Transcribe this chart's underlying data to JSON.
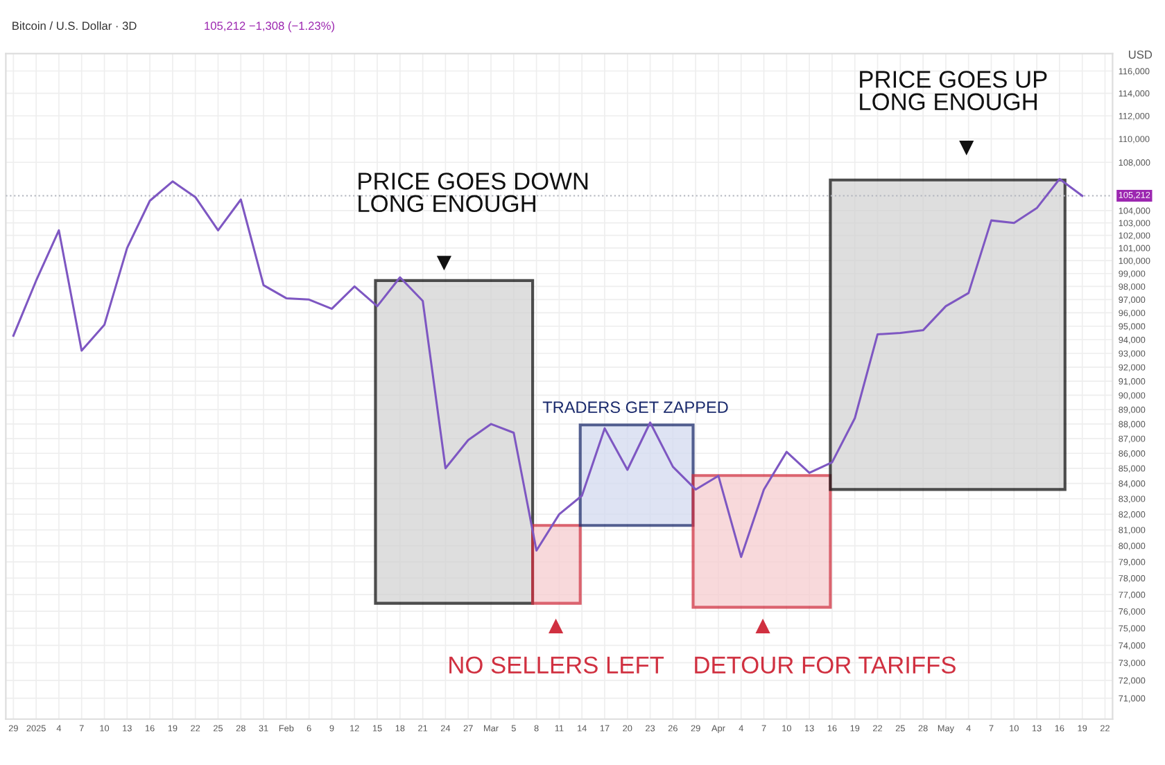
{
  "chart_data": {
    "type": "line",
    "title": "Bitcoin / U.S. Dollar · 3D",
    "subtitle": "105,212 −1,308 (−1.23%)",
    "ylabel": "USD",
    "x": [
      "2024-12-29",
      "2025-01-01",
      "2025-01-04",
      "2025-01-07",
      "2025-01-10",
      "2025-01-13",
      "2025-01-16",
      "2025-01-19",
      "2025-01-22",
      "2025-01-25",
      "2025-01-28",
      "2025-01-31",
      "2025-02-03",
      "2025-02-06",
      "2025-02-09",
      "2025-02-12",
      "2025-02-15",
      "2025-02-18",
      "2025-02-21",
      "2025-02-24",
      "2025-02-27",
      "2025-03-02",
      "2025-03-05",
      "2025-03-08",
      "2025-03-11",
      "2025-03-14",
      "2025-03-17",
      "2025-03-20",
      "2025-03-23",
      "2025-03-26",
      "2025-03-29",
      "2025-04-01",
      "2025-04-04",
      "2025-04-07",
      "2025-04-10",
      "2025-04-13",
      "2025-04-16",
      "2025-04-19",
      "2025-04-22",
      "2025-04-25",
      "2025-04-28",
      "2025-05-01",
      "2025-05-04",
      "2025-05-07",
      "2025-05-10",
      "2025-05-13",
      "2025-05-16",
      "2025-05-19"
    ],
    "series": [
      {
        "color": "#7e57c2",
        "values": [
          94300,
          98450,
          102400,
          93200,
          95100,
          101000,
          104800,
          106400,
          105100,
          102400,
          104900,
          98100,
          97100,
          97000,
          96300,
          98000,
          96500,
          98700,
          96900,
          85000,
          86900,
          88000,
          87400,
          79700,
          82000,
          83200,
          87700,
          84900,
          88100,
          85100,
          83600,
          84500,
          79300,
          83600,
          86100,
          84700,
          85400,
          88400,
          94400,
          94500,
          94700,
          96500,
          97500,
          103200,
          103000,
          104200,
          106600,
          105212
        ]
      }
    ],
    "log": true,
    "grid": true,
    "legend": false,
    "marker": "none",
    "line_style": "solid",
    "xlim": [
      "2024-12-28",
      "2025-05-23"
    ],
    "xticks": [
      {
        "value": "2024-12-29",
        "label": "29"
      },
      {
        "value": "2025-01-01",
        "label": "2025"
      },
      {
        "value": "2025-01-04",
        "label": "4"
      },
      {
        "value": "2025-01-07",
        "label": "7"
      },
      {
        "value": "2025-01-10",
        "label": "10"
      },
      {
        "value": "2025-01-13",
        "label": "13"
      },
      {
        "value": "2025-01-16",
        "label": "16"
      },
      {
        "value": "2025-01-19",
        "label": "19"
      },
      {
        "value": "2025-01-22",
        "label": "22"
      },
      {
        "value": "2025-01-25",
        "label": "25"
      },
      {
        "value": "2025-01-28",
        "label": "28"
      },
      {
        "value": "2025-01-31",
        "label": "31"
      },
      {
        "value": "2025-02-03",
        "label": "Feb"
      },
      {
        "value": "2025-02-06",
        "label": "6"
      },
      {
        "value": "2025-02-09",
        "label": "9"
      },
      {
        "value": "2025-02-12",
        "label": "12"
      },
      {
        "value": "2025-02-15",
        "label": "15"
      },
      {
        "value": "2025-02-18",
        "label": "18"
      },
      {
        "value": "2025-02-21",
        "label": "21"
      },
      {
        "value": "2025-02-24",
        "label": "24"
      },
      {
        "value": "2025-02-27",
        "label": "27"
      },
      {
        "value": "2025-03-02",
        "label": "Mar"
      },
      {
        "value": "2025-03-05",
        "label": "5"
      },
      {
        "value": "2025-03-08",
        "label": "8"
      },
      {
        "value": "2025-03-11",
        "label": "11"
      },
      {
        "value": "2025-03-14",
        "label": "14"
      },
      {
        "value": "2025-03-17",
        "label": "17"
      },
      {
        "value": "2025-03-20",
        "label": "20"
      },
      {
        "value": "2025-03-23",
        "label": "23"
      },
      {
        "value": "2025-03-26",
        "label": "26"
      },
      {
        "value": "2025-03-29",
        "label": "29"
      },
      {
        "value": "2025-04-01",
        "label": "Apr"
      },
      {
        "value": "2025-04-04",
        "label": "4"
      },
      {
        "value": "2025-04-07",
        "label": "7"
      },
      {
        "value": "2025-04-10",
        "label": "10"
      },
      {
        "value": "2025-04-13",
        "label": "13"
      },
      {
        "value": "2025-04-16",
        "label": "16"
      },
      {
        "value": "2025-04-19",
        "label": "19"
      },
      {
        "value": "2025-04-22",
        "label": "22"
      },
      {
        "value": "2025-04-25",
        "label": "25"
      },
      {
        "value": "2025-04-28",
        "label": "28"
      },
      {
        "value": "2025-05-01",
        "label": "May"
      },
      {
        "value": "2025-05-04",
        "label": "4"
      },
      {
        "value": "2025-05-07",
        "label": "7"
      },
      {
        "value": "2025-05-10",
        "label": "10"
      },
      {
        "value": "2025-05-13",
        "label": "13"
      },
      {
        "value": "2025-05-16",
        "label": "16"
      },
      {
        "value": "2025-05-19",
        "label": "19"
      },
      {
        "value": "2025-05-22",
        "label": "22"
      }
    ],
    "ylim": [
      69850,
      117600
    ],
    "yticks": [
      {
        "value": 71000,
        "label": "71,000"
      },
      {
        "value": 72000,
        "label": "72,000"
      },
      {
        "value": 73000,
        "label": "73,000"
      },
      {
        "value": 74000,
        "label": "74,000"
      },
      {
        "value": 75000,
        "label": "75,000"
      },
      {
        "value": 76000,
        "label": "76,000"
      },
      {
        "value": 77000,
        "label": "77,000"
      },
      {
        "value": 78000,
        "label": "78,000"
      },
      {
        "value": 79000,
        "label": "79,000"
      },
      {
        "value": 80000,
        "label": "80,000"
      },
      {
        "value": 81000,
        "label": "81,000"
      },
      {
        "value": 82000,
        "label": "82,000"
      },
      {
        "value": 83000,
        "label": "83,000"
      },
      {
        "value": 84000,
        "label": "84,000"
      },
      {
        "value": 85000,
        "label": "85,000"
      },
      {
        "value": 86000,
        "label": "86,000"
      },
      {
        "value": 87000,
        "label": "87,000"
      },
      {
        "value": 88000,
        "label": "88,000"
      },
      {
        "value": 89000,
        "label": "89,000"
      },
      {
        "value": 90000,
        "label": "90,000"
      },
      {
        "value": 91000,
        "label": "91,000"
      },
      {
        "value": 92000,
        "label": "92,000"
      },
      {
        "value": 93000,
        "label": "93,000"
      },
      {
        "value": 94000,
        "label": "94,000"
      },
      {
        "value": 95000,
        "label": "95,000"
      },
      {
        "value": 96000,
        "label": "96,000"
      },
      {
        "value": 97000,
        "label": "97,000"
      },
      {
        "value": 98000,
        "label": "98,000"
      },
      {
        "value": 99000,
        "label": "99,000"
      },
      {
        "value": 100000,
        "label": "100,000"
      },
      {
        "value": 101000,
        "label": "101,000"
      },
      {
        "value": 102000,
        "label": "102,000"
      },
      {
        "value": 103000,
        "label": "103,000"
      },
      {
        "value": 104000,
        "label": "104,000"
      },
      {
        "value": 108000,
        "label": "108,000"
      },
      {
        "value": 110000,
        "label": "110,000"
      },
      {
        "value": 112000,
        "label": "112,000"
      },
      {
        "value": 114000,
        "label": "114,000"
      },
      {
        "value": 116000,
        "label": "116,000"
      }
    ],
    "ref_lines": [
      {
        "axis": "y",
        "value": 105212,
        "label": "105,212",
        "color": "#b2b5be",
        "line_style": "dotted"
      }
    ],
    "annotations": [
      "PRICE GOES DOWN\nLONG ENOUGH",
      "TRADERS GET ZAPPED",
      "NO SELLERS LEFT",
      "DETOUR FOR TARIFFS",
      "PRICE GOES UP\nLONG ENOUGH"
    ]
  }
}
